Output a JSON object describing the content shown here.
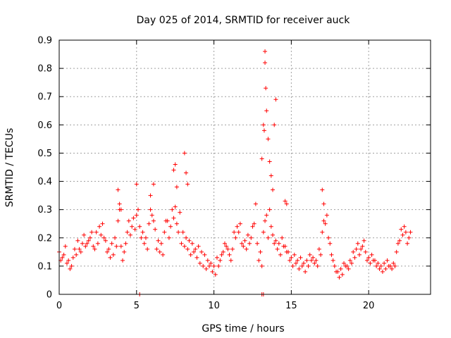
{
  "chart_data": {
    "type": "scatter",
    "title": "Day 025 of 2014, SRMTID for receiver auck",
    "xlabel": "GPS time / hours",
    "ylabel": "SRMTID / TECUs",
    "xlim": [
      0,
      24
    ],
    "ylim": [
      0,
      0.9
    ],
    "xticks": [
      "0",
      "5",
      "10",
      "15",
      "20"
    ],
    "yticks": [
      "0",
      "0.1",
      "0.2",
      "0.3",
      "0.4",
      "0.5",
      "0.6",
      "0.7",
      "0.8",
      "0.9"
    ],
    "grid": true,
    "marker": "+",
    "color": "#ff0000",
    "series": [
      {
        "name": "SRMTID",
        "x": [
          0.0,
          0.2,
          0.4,
          0.6,
          0.8,
          1.0,
          1.2,
          1.4,
          1.6,
          1.8,
          2.0,
          2.2,
          2.4,
          2.6,
          2.8,
          3.0,
          3.2,
          3.4,
          3.6,
          3.8,
          4.0,
          4.2,
          4.4,
          4.6,
          4.8,
          5.0,
          5.2,
          5.4,
          5.6,
          5.8,
          6.0,
          6.2,
          6.4,
          6.6,
          6.8,
          7.0,
          7.2,
          7.4,
          7.6,
          7.8,
          8.0,
          8.2,
          8.4,
          8.6,
          8.8,
          9.0,
          9.2,
          9.4,
          9.6,
          9.8,
          10.0,
          10.2,
          10.4,
          10.6,
          10.8,
          11.0,
          11.2,
          11.4,
          11.6,
          11.8,
          12.0,
          12.2,
          12.4,
          12.6,
          12.8,
          13.0,
          13.2,
          13.4,
          13.6,
          13.8,
          14.0,
          14.2,
          14.4,
          14.6,
          14.8,
          15.0,
          15.2,
          15.4,
          15.6,
          15.8,
          16.0,
          16.2,
          16.4,
          16.6,
          16.8,
          17.0,
          17.2,
          17.4,
          17.6,
          17.8,
          18.0,
          18.2,
          18.4,
          18.6,
          18.8,
          19.0,
          19.2,
          19.4,
          19.6,
          19.8,
          20.0,
          20.2,
          20.4,
          20.6,
          20.8,
          21.0,
          21.2,
          21.4,
          21.6,
          21.8,
          22.0,
          22.2,
          22.4,
          22.6,
          0.1,
          0.3,
          0.5,
          0.7,
          0.9,
          1.1,
          1.3,
          1.5,
          1.7,
          1.9,
          2.1,
          2.3,
          2.5,
          2.7,
          2.9,
          3.1,
          3.3,
          3.5,
          3.7,
          3.9,
          4.1,
          4.3,
          4.5,
          4.7,
          4.9,
          5.1,
          5.3,
          5.5,
          5.7,
          5.9,
          6.1,
          6.3,
          6.5,
          6.7,
          6.9,
          7.1,
          7.3,
          7.5,
          7.7,
          7.9,
          8.1,
          8.3,
          8.5,
          8.7,
          8.9,
          9.1,
          9.3,
          9.5,
          9.7,
          9.9,
          10.1,
          10.3,
          10.5,
          10.7,
          10.9,
          11.1,
          11.3,
          11.5,
          11.7,
          11.9,
          12.1,
          12.3,
          12.5,
          12.7,
          12.9,
          13.1,
          13.3,
          13.5,
          13.7,
          13.9,
          14.1,
          14.3,
          14.5,
          14.7,
          14.9,
          15.1,
          15.3,
          15.5,
          15.7,
          15.9,
          16.1,
          16.3,
          16.5,
          16.7,
          16.9,
          17.1,
          17.3,
          17.5,
          17.7,
          17.9,
          18.1,
          18.3,
          18.5,
          18.7,
          18.9,
          19.1,
          19.3,
          19.5,
          19.7,
          19.9,
          20.1,
          20.3,
          20.5,
          20.7,
          20.9,
          21.1,
          21.3,
          21.5,
          21.7,
          21.9,
          22.1,
          22.3,
          22.5,
          22.7,
          3.8,
          3.9,
          4.0,
          5.0,
          5.9,
          6.1,
          7.4,
          7.5,
          7.6,
          8.1,
          8.2,
          8.3,
          13.1,
          13.2,
          13.25,
          13.3,
          13.3,
          13.35,
          13.4,
          13.5,
          13.6,
          13.7,
          13.8,
          13.9,
          14.0,
          14.6,
          14.7,
          17.0,
          17.1,
          5.2,
          13.1,
          13.2
        ],
        "y": [
          0.15,
          0.13,
          0.17,
          0.12,
          0.1,
          0.16,
          0.19,
          0.15,
          0.21,
          0.18,
          0.2,
          0.17,
          0.22,
          0.24,
          0.25,
          0.19,
          0.16,
          0.18,
          0.2,
          0.26,
          0.17,
          0.15,
          0.22,
          0.21,
          0.27,
          0.28,
          0.24,
          0.22,
          0.2,
          0.25,
          0.28,
          0.23,
          0.19,
          0.18,
          0.22,
          0.26,
          0.24,
          0.27,
          0.25,
          0.29,
          0.22,
          0.2,
          0.19,
          0.18,
          0.16,
          0.17,
          0.15,
          0.14,
          0.12,
          0.11,
          0.1,
          0.13,
          0.12,
          0.15,
          0.17,
          0.14,
          0.16,
          0.2,
          0.22,
          0.18,
          0.19,
          0.21,
          0.2,
          0.25,
          0.18,
          0.15,
          0.22,
          0.28,
          0.3,
          0.21,
          0.19,
          0.18,
          0.2,
          0.17,
          0.15,
          0.13,
          0.14,
          0.12,
          0.13,
          0.11,
          0.12,
          0.14,
          0.13,
          0.12,
          0.16,
          0.22,
          0.25,
          0.2,
          0.14,
          0.1,
          0.08,
          0.09,
          0.11,
          0.1,
          0.12,
          0.15,
          0.16,
          0.14,
          0.17,
          0.15,
          0.13,
          0.14,
          0.12,
          0.11,
          0.1,
          0.11,
          0.12,
          0.1,
          0.11,
          0.15,
          0.19,
          0.21,
          0.22,
          0.2,
          0.12,
          0.14,
          0.11,
          0.09,
          0.13,
          0.14,
          0.16,
          0.18,
          0.17,
          0.19,
          0.22,
          0.16,
          0.18,
          0.21,
          0.2,
          0.15,
          0.13,
          0.14,
          0.17,
          0.3,
          0.12,
          0.18,
          0.26,
          0.24,
          0.23,
          0.3,
          0.2,
          0.18,
          0.16,
          0.3,
          0.26,
          0.16,
          0.15,
          0.14,
          0.26,
          0.2,
          0.3,
          0.31,
          0.22,
          0.18,
          0.17,
          0.16,
          0.14,
          0.15,
          0.13,
          0.11,
          0.1,
          0.09,
          0.1,
          0.08,
          0.07,
          0.1,
          0.14,
          0.18,
          0.16,
          0.12,
          0.22,
          0.24,
          0.25,
          0.17,
          0.16,
          0.18,
          0.24,
          0.32,
          0.12,
          0.1,
          0.26,
          0.2,
          0.24,
          0.18,
          0.16,
          0.14,
          0.17,
          0.15,
          0.12,
          0.1,
          0.11,
          0.09,
          0.1,
          0.08,
          0.1,
          0.12,
          0.11,
          0.1,
          0.14,
          0.26,
          0.28,
          0.18,
          0.12,
          0.08,
          0.06,
          0.07,
          0.1,
          0.09,
          0.11,
          0.13,
          0.18,
          0.16,
          0.19,
          0.12,
          0.11,
          0.12,
          0.1,
          0.09,
          0.08,
          0.09,
          0.1,
          0.09,
          0.1,
          0.18,
          0.23,
          0.24,
          0.18,
          0.22,
          0.37,
          0.32,
          0.3,
          0.39,
          0.35,
          0.39,
          0.44,
          0.46,
          0.38,
          0.5,
          0.43,
          0.39,
          0.48,
          0.6,
          0.58,
          0.86,
          0.82,
          0.73,
          0.65,
          0.55,
          0.47,
          0.42,
          0.37,
          0.6,
          0.69,
          0.33,
          0.32,
          0.37,
          0.32,
          0.0,
          0.0,
          0.0
        ]
      }
    ]
  }
}
